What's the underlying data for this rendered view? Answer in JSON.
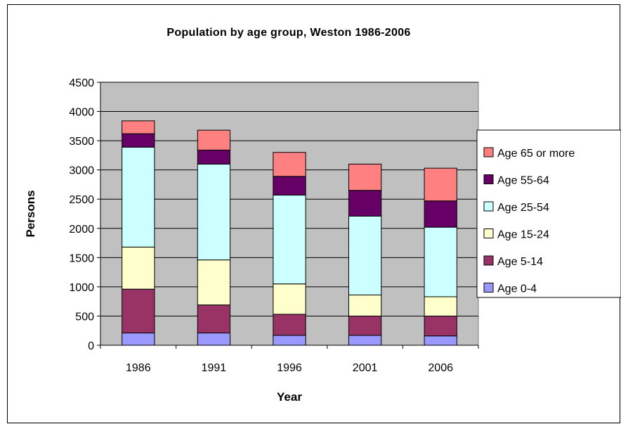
{
  "chart_data": {
    "type": "bar",
    "stacked": true,
    "title": "Population by age group, Weston 1986-2006",
    "xlabel": "Year",
    "ylabel": "Persons",
    "categories": [
      "1986",
      "1991",
      "1996",
      "2001",
      "2006"
    ],
    "ylim": [
      0,
      4500
    ],
    "yticks": [
      0,
      500,
      1000,
      1500,
      2000,
      2500,
      3000,
      3500,
      4000,
      4500
    ],
    "grid": true,
    "plot_background": "#c0c0c0",
    "legend_position": "right",
    "series": [
      {
        "name": "Age 0-4",
        "color": "#9999ff",
        "values": [
          210,
          210,
          170,
          170,
          160
        ]
      },
      {
        "name": "Age 5-14",
        "color": "#993366",
        "values": [
          750,
          480,
          360,
          330,
          340
        ]
      },
      {
        "name": "Age 15-24",
        "color": "#ffffcc",
        "values": [
          720,
          770,
          520,
          360,
          330
        ]
      },
      {
        "name": "Age 25-54",
        "color": "#ccffff",
        "values": [
          1710,
          1640,
          1520,
          1350,
          1190
        ]
      },
      {
        "name": "Age 55-64",
        "color": "#660066",
        "values": [
          230,
          240,
          320,
          440,
          450
        ]
      },
      {
        "name": "Age 65 or more",
        "color": "#ff8080",
        "values": [
          220,
          340,
          410,
          450,
          560
        ]
      }
    ]
  }
}
